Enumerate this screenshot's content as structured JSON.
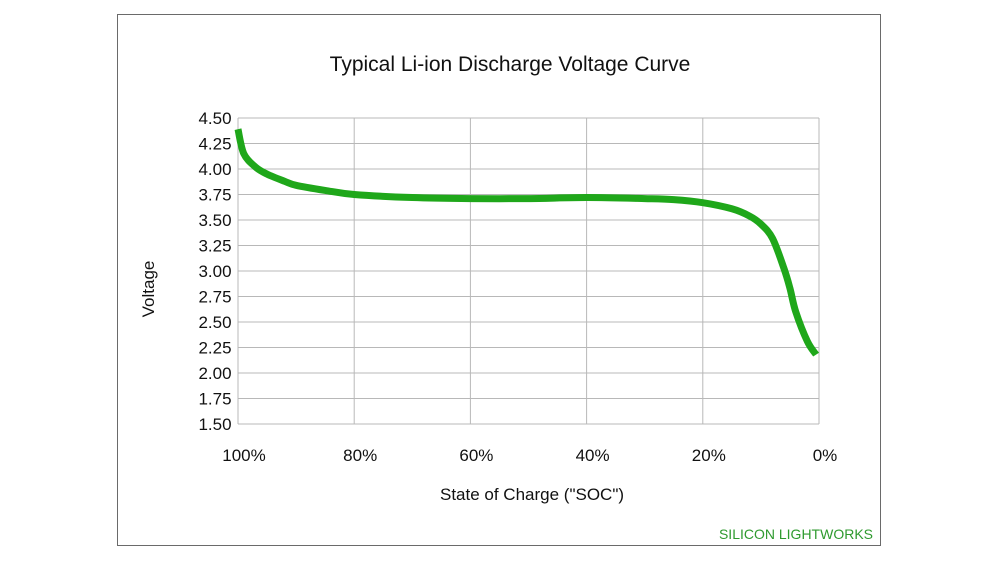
{
  "chart_data": {
    "type": "line",
    "title": "Typical Li-ion Discharge Voltage Curve",
    "xlabel": "State of Charge (\"SOC\")",
    "ylabel": "Voltage",
    "watermark": "SILICON LIGHTWORKS",
    "x_reversed": true,
    "xlim": [
      100,
      0
    ],
    "ylim": [
      1.5,
      4.5
    ],
    "grid": true,
    "x_ticks": [
      "100%",
      "80%",
      "60%",
      "40%",
      "20%",
      "0%"
    ],
    "x_tick_values": [
      100,
      80,
      60,
      40,
      20,
      0
    ],
    "y_ticks": [
      "4.50",
      "4.25",
      "4.00",
      "3.75",
      "3.50",
      "3.25",
      "3.00",
      "2.75",
      "2.50",
      "2.25",
      "2.00",
      "1.75",
      "1.50"
    ],
    "y_tick_values": [
      4.5,
      4.25,
      4.0,
      3.75,
      3.5,
      3.25,
      3.0,
      2.75,
      2.5,
      2.25,
      2.0,
      1.75,
      1.5
    ],
    "series": [
      {
        "color": "#1fa71a",
        "x": [
          100,
          99,
          97,
          95,
          92,
          90,
          85,
          80,
          70,
          60,
          50,
          40,
          30,
          25,
          20,
          15,
          12,
          10,
          8,
          6,
          5,
          4,
          2,
          0.5
        ],
        "y": [
          4.39,
          4.15,
          4.02,
          3.95,
          3.88,
          3.84,
          3.79,
          3.75,
          3.72,
          3.71,
          3.71,
          3.72,
          3.71,
          3.7,
          3.67,
          3.61,
          3.54,
          3.46,
          3.32,
          3.02,
          2.83,
          2.6,
          2.31,
          2.18
        ]
      }
    ]
  }
}
